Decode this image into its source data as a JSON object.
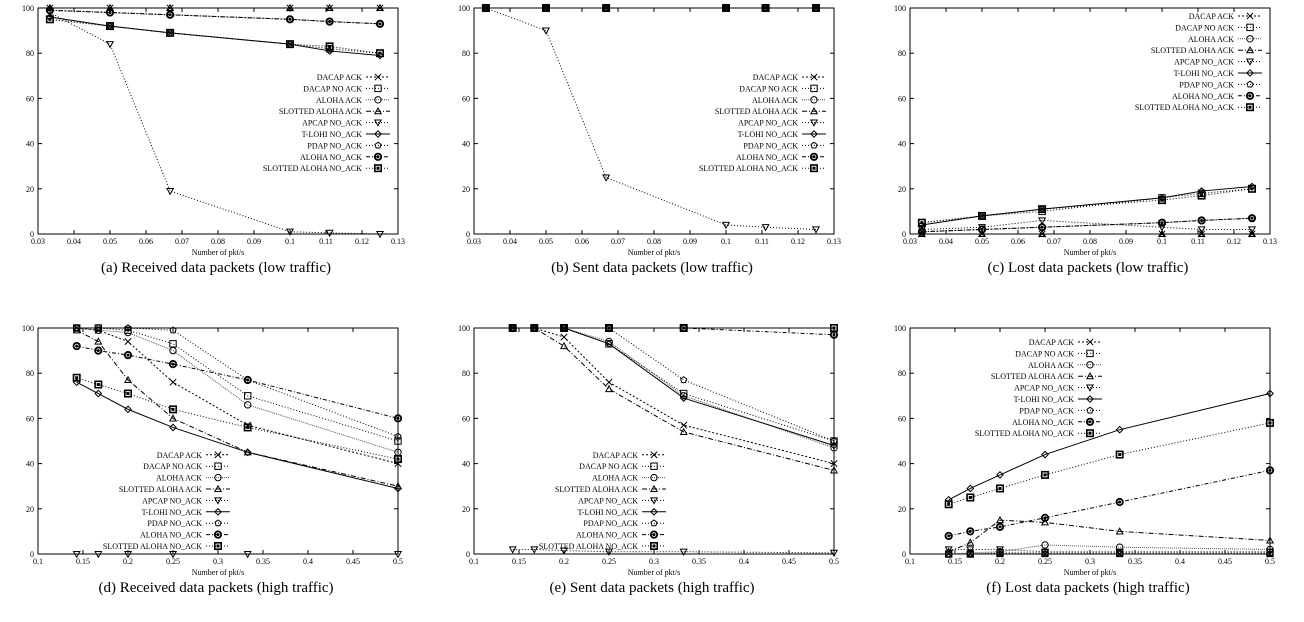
{
  "series_styles": [
    {
      "name": "DACAP ACK",
      "marker": "x",
      "dash": "2,2",
      "color": "#000000"
    },
    {
      "name": "DACAP NO ACK",
      "marker": "square",
      "dash": "1,2",
      "color": "#000000"
    },
    {
      "name": "ALOHA ACK",
      "marker": "circle",
      "dash": "1,1",
      "color": "#555555"
    },
    {
      "name": "SLOTTED ALOHA ACK",
      "marker": "triangle",
      "dash": "5,2,1,2",
      "color": "#000000"
    },
    {
      "name": "APCAP NO_ACK",
      "marker": "triangle-down",
      "dash": "1,2",
      "color": "#000000"
    },
    {
      "name": "T-LOHI NO_ACK",
      "marker": "diamond",
      "dash": "",
      "color": "#000000"
    },
    {
      "name": "PDAP NO_ACK",
      "marker": "pentagon",
      "dash": "1,2",
      "color": "#000000"
    },
    {
      "name": "ALOHA NO_ACK",
      "marker": "circle-dot",
      "dash": "4,2,1,2",
      "color": "#000000"
    },
    {
      "name": "SLOTTED ALOHA NO_ACK",
      "marker": "square-dot",
      "dash": "1,2",
      "color": "#000000"
    }
  ],
  "chart_data": [
    {
      "type": "line",
      "caption": "(a) Received data packets (low traffic)",
      "xlabel": "Number of pkt/s",
      "xlim": [
        0.03,
        0.13
      ],
      "ylim": [
        0,
        100
      ],
      "xticks": [
        "0.03",
        "0.04",
        "0.05",
        "0.06",
        "0.07",
        "0.08",
        "0.09",
        "0.1",
        "0.11",
        "0.12",
        "0.13"
      ],
      "yticks": [
        "0",
        "20",
        "40",
        "60",
        "80",
        "100"
      ],
      "legend": "center-right",
      "x": [
        0.0333,
        0.05,
        0.0667,
        0.1,
        0.111,
        0.125
      ],
      "series": [
        {
          "name": "DACAP ACK",
          "values": [
            100,
            100,
            100,
            100,
            100,
            100
          ]
        },
        {
          "name": "DACAP NO ACK",
          "values": [
            95,
            92,
            89,
            84,
            82,
            80
          ]
        },
        {
          "name": "ALOHA ACK",
          "values": [
            99,
            98,
            97,
            95,
            94,
            93
          ]
        },
        {
          "name": "SLOTTED ALOHA ACK",
          "values": [
            100,
            100,
            100,
            100,
            100,
            100
          ]
        },
        {
          "name": "APCAP NO_ACK",
          "values": [
            98,
            84,
            19,
            1,
            0.5,
            0
          ]
        },
        {
          "name": "T-LOHI NO_ACK",
          "values": [
            96,
            92,
            89,
            84,
            81,
            79
          ]
        },
        {
          "name": "PDAP NO_ACK",
          "values": [
            99,
            98,
            97,
            95,
            94,
            93
          ]
        },
        {
          "name": "ALOHA NO_ACK",
          "values": [
            99,
            98,
            97,
            95,
            94,
            93
          ]
        },
        {
          "name": "SLOTTED ALOHA NO_ACK",
          "values": [
            95,
            92,
            89,
            84,
            83,
            80
          ]
        }
      ]
    },
    {
      "type": "line",
      "caption": "(b) Sent data packets (low traffic)",
      "xlabel": "Number of pkt/s",
      "xlim": [
        0.03,
        0.13
      ],
      "ylim": [
        0,
        100
      ],
      "xticks": [
        "0.03",
        "0.04",
        "0.05",
        "0.06",
        "0.07",
        "0.08",
        "0.09",
        "0.1",
        "0.11",
        "0.12",
        "0.13"
      ],
      "yticks": [
        "0",
        "20",
        "40",
        "60",
        "80",
        "100"
      ],
      "legend": "center-right",
      "x": [
        0.0333,
        0.05,
        0.0667,
        0.1,
        0.111,
        0.125
      ],
      "series": [
        {
          "name": "DACAP ACK",
          "values": [
            100,
            100,
            100,
            100,
            100,
            100
          ]
        },
        {
          "name": "DACAP NO ACK",
          "values": [
            100,
            100,
            100,
            100,
            100,
            100
          ]
        },
        {
          "name": "ALOHA ACK",
          "values": [
            100,
            100,
            100,
            100,
            100,
            100
          ]
        },
        {
          "name": "SLOTTED ALOHA ACK",
          "values": [
            100,
            100,
            100,
            100,
            100,
            100
          ]
        },
        {
          "name": "APCAP NO_ACK",
          "values": [
            100,
            90,
            25,
            4,
            3,
            2
          ]
        },
        {
          "name": "T-LOHI NO_ACK",
          "values": [
            100,
            100,
            100,
            100,
            100,
            100
          ]
        },
        {
          "name": "PDAP NO_ACK",
          "values": [
            100,
            100,
            100,
            100,
            100,
            100
          ]
        },
        {
          "name": "ALOHA NO_ACK",
          "values": [
            100,
            100,
            100,
            100,
            100,
            100
          ]
        },
        {
          "name": "SLOTTED ALOHA NO_ACK",
          "values": [
            100,
            100,
            100,
            100,
            100,
            100
          ]
        }
      ]
    },
    {
      "type": "line",
      "caption": "(c) Lost data packets (low traffic)",
      "xlabel": "Number of pkt/s",
      "xlim": [
        0.03,
        0.13
      ],
      "ylim": [
        0,
        100
      ],
      "xticks": [
        "0.03",
        "0.04",
        "0.05",
        "0.06",
        "0.07",
        "0.08",
        "0.09",
        "0.1",
        "0.11",
        "0.12",
        "0.13"
      ],
      "yticks": [
        "0",
        "20",
        "40",
        "60",
        "80",
        "100"
      ],
      "legend": "top-right",
      "x": [
        0.0333,
        0.05,
        0.0667,
        0.1,
        0.111,
        0.125
      ],
      "series": [
        {
          "name": "DACAP ACK",
          "values": [
            0,
            0,
            0,
            0,
            0,
            0
          ]
        },
        {
          "name": "DACAP NO ACK",
          "values": [
            5,
            8,
            10,
            16,
            18,
            20
          ]
        },
        {
          "name": "ALOHA ACK",
          "values": [
            1,
            2,
            3,
            5,
            6,
            7
          ]
        },
        {
          "name": "SLOTTED ALOHA ACK",
          "values": [
            0,
            0,
            0,
            0,
            0,
            0
          ]
        },
        {
          "name": "APCAP NO_ACK",
          "values": [
            2,
            3,
            6,
            3,
            2,
            2
          ]
        },
        {
          "name": "T-LOHI NO_ACK",
          "values": [
            4,
            8,
            11,
            16,
            19,
            21
          ]
        },
        {
          "name": "PDAP NO_ACK",
          "values": [
            1,
            2,
            3,
            5,
            6,
            7
          ]
        },
        {
          "name": "ALOHA NO_ACK",
          "values": [
            1,
            2,
            3,
            5,
            6,
            7
          ]
        },
        {
          "name": "SLOTTED ALOHA NO_ACK",
          "values": [
            5,
            8,
            11,
            15,
            17,
            20
          ]
        }
      ]
    },
    {
      "type": "line",
      "caption": "(d) Received data packets (high traffic)",
      "xlabel": "Number of pkt/s",
      "xlim": [
        0.1,
        0.5
      ],
      "ylim": [
        0,
        100
      ],
      "xticks": [
        "0.1",
        "0.15",
        "0.2",
        "0.25",
        "0.3",
        "0.35",
        "0.4",
        "0.45",
        "0.5"
      ],
      "yticks": [
        "0",
        "20",
        "40",
        "60",
        "80",
        "100"
      ],
      "legend": "bottom-left",
      "x": [
        0.143,
        0.167,
        0.2,
        0.25,
        0.333,
        0.5
      ],
      "series": [
        {
          "name": "DACAP ACK",
          "values": [
            100,
            99,
            94,
            76,
            57,
            40
          ]
        },
        {
          "name": "DACAP NO ACK",
          "values": [
            100,
            100,
            99,
            93,
            70,
            50
          ]
        },
        {
          "name": "ALOHA ACK",
          "values": [
            100,
            99,
            98,
            90,
            66,
            45
          ]
        },
        {
          "name": "SLOTTED ALOHA ACK",
          "values": [
            99,
            94,
            77,
            60,
            45,
            30
          ]
        },
        {
          "name": "APCAP NO_ACK",
          "values": [
            0,
            0,
            0,
            0,
            0,
            0
          ]
        },
        {
          "name": "T-LOHI NO_ACK",
          "values": [
            76,
            71,
            64,
            56,
            45,
            29
          ]
        },
        {
          "name": "PDAP NO_ACK",
          "values": [
            100,
            100,
            100,
            99,
            77,
            52
          ]
        },
        {
          "name": "ALOHA NO_ACK",
          "values": [
            92,
            90,
            88,
            84,
            77,
            60
          ]
        },
        {
          "name": "SLOTTED ALOHA NO_ACK",
          "values": [
            78,
            75,
            71,
            64,
            56,
            42
          ]
        }
      ]
    },
    {
      "type": "line",
      "caption": "(e) Sent data packets (high traffic)",
      "xlabel": "Number of pkt/s",
      "xlim": [
        0.1,
        0.5
      ],
      "ylim": [
        0,
        100
      ],
      "xticks": [
        "0.1",
        "0.15",
        "0.2",
        "0.25",
        "0.3",
        "0.35",
        "0.4",
        "0.45",
        "0.5"
      ],
      "yticks": [
        "0",
        "20",
        "40",
        "60",
        "80",
        "100"
      ],
      "legend": "bottom-left",
      "x": [
        0.143,
        0.167,
        0.2,
        0.25,
        0.333,
        0.5
      ],
      "series": [
        {
          "name": "DACAP ACK",
          "values": [
            100,
            100,
            96,
            76,
            57,
            40
          ]
        },
        {
          "name": "DACAP NO ACK",
          "values": [
            100,
            100,
            100,
            93,
            71,
            50
          ]
        },
        {
          "name": "ALOHA ACK",
          "values": [
            100,
            100,
            100,
            94,
            70,
            47
          ]
        },
        {
          "name": "SLOTTED ALOHA ACK",
          "values": [
            100,
            100,
            92,
            73,
            54,
            37
          ]
        },
        {
          "name": "APCAP NO_ACK",
          "values": [
            2,
            2,
            1.5,
            1,
            1,
            0.5
          ]
        },
        {
          "name": "T-LOHI NO_ACK",
          "values": [
            100,
            100,
            100,
            93,
            69,
            48
          ]
        },
        {
          "name": "PDAP NO_ACK",
          "values": [
            100,
            100,
            100,
            100,
            77,
            50
          ]
        },
        {
          "name": "ALOHA NO_ACK",
          "values": [
            100,
            100,
            100,
            100,
            100,
            97
          ]
        },
        {
          "name": "SLOTTED ALOHA NO_ACK",
          "values": [
            100,
            100,
            100,
            100,
            100,
            100
          ]
        }
      ]
    },
    {
      "type": "line",
      "caption": "(f) Lost data packets (high traffic)",
      "xlabel": "Number of pkt/s",
      "xlim": [
        0.1,
        0.5
      ],
      "ylim": [
        0,
        100
      ],
      "xticks": [
        "0.1",
        "0.15",
        "0.2",
        "0.25",
        "0.3",
        "0.35",
        "0.4",
        "0.45",
        "0.5"
      ],
      "yticks": [
        "0",
        "20",
        "40",
        "60",
        "80",
        "100"
      ],
      "legend": "top-left",
      "x": [
        0.143,
        0.167,
        0.2,
        0.25,
        0.333,
        0.5
      ],
      "series": [
        {
          "name": "DACAP ACK",
          "values": [
            0,
            0,
            0,
            0,
            0,
            0
          ]
        },
        {
          "name": "DACAP NO ACK",
          "values": [
            0,
            0,
            0.5,
            0.5,
            0.5,
            0.5
          ]
        },
        {
          "name": "ALOHA ACK",
          "values": [
            0,
            0.5,
            1,
            4,
            3,
            2
          ]
        },
        {
          "name": "SLOTTED ALOHA ACK",
          "values": [
            1,
            5,
            15,
            14,
            10,
            6
          ]
        },
        {
          "name": "APCAP NO_ACK",
          "values": [
            2,
            2,
            2,
            1,
            1,
            1
          ]
        },
        {
          "name": "T-LOHI NO_ACK",
          "values": [
            24,
            29,
            35,
            44,
            55,
            71
          ]
        },
        {
          "name": "PDAP NO_ACK",
          "values": [
            0,
            0,
            0,
            0,
            0,
            0
          ]
        },
        {
          "name": "ALOHA NO_ACK",
          "values": [
            8,
            10,
            12,
            16,
            23,
            37
          ]
        },
        {
          "name": "SLOTTED ALOHA NO_ACK",
          "values": [
            22,
            25,
            29,
            35,
            44,
            58
          ]
        }
      ]
    }
  ]
}
